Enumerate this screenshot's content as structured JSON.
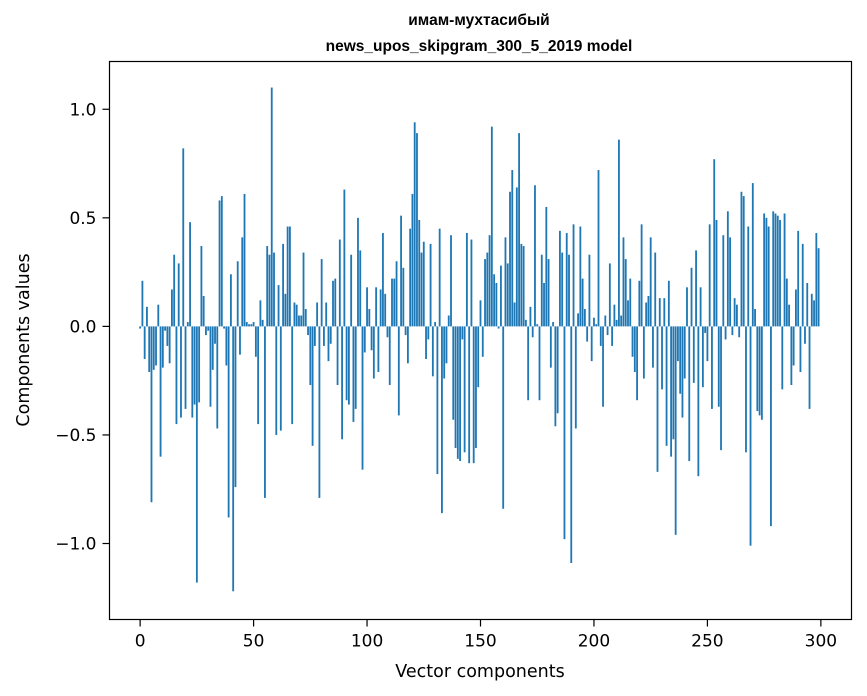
{
  "chart_data": {
    "type": "bar",
    "title": "имам-мухтасибый",
    "subtitle": "news_upos_skipgram_300_5_2019 model",
    "xlabel": "Vector components",
    "ylabel": "Components values",
    "xlim": [
      -13.5,
      313.5
    ],
    "ylim": [
      -1.35,
      1.22
    ],
    "xticks": [
      0,
      50,
      100,
      150,
      200,
      250,
      300
    ],
    "yticks": [
      -1.0,
      -0.5,
      0.0,
      0.5,
      1.0
    ],
    "ytick_labels": [
      "−1.0",
      "−0.5",
      "0.0",
      "0.5",
      "1.0"
    ],
    "grid": false,
    "bar_color": "#1f77b4",
    "x": [
      0,
      1,
      2,
      3,
      4,
      5,
      6,
      7,
      8,
      9,
      10,
      11,
      12,
      13,
      14,
      15,
      16,
      17,
      18,
      19,
      20,
      21,
      22,
      23,
      24,
      25,
      26,
      27,
      28,
      29,
      30,
      31,
      32,
      33,
      34,
      35,
      36,
      37,
      38,
      39,
      40,
      41,
      42,
      43,
      44,
      45,
      46,
      47,
      48,
      49,
      50,
      51,
      52,
      53,
      54,
      55,
      56,
      57,
      58,
      59,
      60,
      61,
      62,
      63,
      64,
      65,
      66,
      67,
      68,
      69,
      70,
      71,
      72,
      73,
      74,
      75,
      76,
      77,
      78,
      79,
      80,
      81,
      82,
      83,
      84,
      85,
      86,
      87,
      88,
      89,
      90,
      91,
      92,
      93,
      94,
      95,
      96,
      97,
      98,
      99,
      100,
      101,
      102,
      103,
      104,
      105,
      106,
      107,
      108,
      109,
      110,
      111,
      112,
      113,
      114,
      115,
      116,
      117,
      118,
      119,
      120,
      121,
      122,
      123,
      124,
      125,
      126,
      127,
      128,
      129,
      130,
      131,
      132,
      133,
      134,
      135,
      136,
      137,
      138,
      139,
      140,
      141,
      142,
      143,
      144,
      145,
      146,
      147,
      148,
      149,
      150,
      151,
      152,
      153,
      154,
      155,
      156,
      157,
      158,
      159,
      160,
      161,
      162,
      163,
      164,
      165,
      166,
      167,
      168,
      169,
      170,
      171,
      172,
      173,
      174,
      175,
      176,
      177,
      178,
      179,
      180,
      181,
      182,
      183,
      184,
      185,
      186,
      187,
      188,
      189,
      190,
      191,
      192,
      193,
      194,
      195,
      196,
      197,
      198,
      199,
      200,
      201,
      202,
      203,
      204,
      205,
      206,
      207,
      208,
      209,
      210,
      211,
      212,
      213,
      214,
      215,
      216,
      217,
      218,
      219,
      220,
      221,
      222,
      223,
      224,
      225,
      226,
      227,
      228,
      229,
      230,
      231,
      232,
      233,
      234,
      235,
      236,
      237,
      238,
      239,
      240,
      241,
      242,
      243,
      244,
      245,
      246,
      247,
      248,
      249,
      250,
      251,
      252,
      253,
      254,
      255,
      256,
      257,
      258,
      259,
      260,
      261,
      262,
      263,
      264,
      265,
      266,
      267,
      268,
      269,
      270,
      271,
      272,
      273,
      274,
      275,
      276,
      277,
      278,
      279,
      280,
      281,
      282,
      283,
      284,
      285,
      286,
      287,
      288,
      289,
      290,
      291,
      292,
      293,
      294,
      295,
      296,
      297,
      298,
      299
    ],
    "values": [
      -0.01,
      0.21,
      -0.15,
      0.09,
      -0.21,
      -0.81,
      -0.2,
      -0.18,
      0.1,
      -0.6,
      -0.19,
      -0.02,
      -0.09,
      -0.17,
      0.17,
      0.33,
      -0.45,
      0.29,
      -0.42,
      0.82,
      -0.38,
      0.02,
      0.48,
      -0.42,
      -0.36,
      -1.18,
      -0.35,
      0.37,
      0.14,
      -0.04,
      -0.02,
      -0.37,
      -0.2,
      -0.08,
      -0.47,
      0.58,
      0.6,
      -0.01,
      -0.18,
      -0.88,
      0.24,
      -1.22,
      -0.74,
      0.3,
      -0.13,
      0.41,
      0.61,
      0.02,
      0.01,
      0.01,
      0.02,
      -0.14,
      -0.45,
      0.12,
      0.03,
      -0.79,
      0.37,
      0.33,
      1.1,
      0.34,
      -0.5,
      0.19,
      -0.48,
      0.38,
      0.15,
      0.46,
      0.46,
      -0.45,
      0.11,
      0.1,
      0.05,
      0.05,
      0.34,
      0.08,
      -0.04,
      -0.27,
      -0.55,
      -0.09,
      0.11,
      -0.79,
      0.31,
      -0.09,
      0.11,
      -0.16,
      -0.08,
      0.21,
      0.22,
      -0.27,
      0.4,
      -0.52,
      0.63,
      -0.34,
      -0.36,
      0.33,
      -0.44,
      -0.38,
      0.5,
      0.35,
      -0.66,
      -0.12,
      0.18,
      0.08,
      -0.11,
      -0.24,
      0.18,
      -0.21,
      0.17,
      0.43,
      0.15,
      -0.05,
      -0.27,
      0.22,
      0.22,
      0.3,
      -0.41,
      0.51,
      0.27,
      -0.04,
      -0.17,
      0.45,
      0.61,
      0.94,
      0.89,
      0.49,
      0.34,
      0.39,
      -0.15,
      -0.06,
      0.38,
      -0.23,
      0.02,
      -0.68,
      0.45,
      -0.86,
      -0.24,
      -0.17,
      0.05,
      0.42,
      -0.43,
      -0.56,
      -0.61,
      -0.62,
      -0.06,
      -0.58,
      0.43,
      -0.63,
      0.4,
      -0.63,
      -0.56,
      -0.28,
      0.12,
      -0.14,
      0.31,
      0.34,
      0.42,
      0.92,
      0.24,
      0.2,
      -0.01,
      0.28,
      -0.84,
      0.41,
      0.29,
      0.62,
      0.72,
      0.11,
      0.64,
      0.89,
      0.38,
      0.37,
      0.03,
      -0.34,
      0.09,
      -0.05,
      0.65,
      0.01,
      -0.34,
      0.33,
      0.2,
      0.55,
      0.31,
      -0.19,
      0.02,
      -0.46,
      -0.4,
      0.44,
      0.34,
      -0.98,
      0.43,
      0.33,
      -1.09,
      0.47,
      -0.47,
      0.06,
      0.46,
      0.22,
      0.08,
      -0.07,
      0.33,
      -0.16,
      0.04,
      0.01,
      0.72,
      -0.09,
      -0.37,
      0.05,
      -0.04,
      0.29,
      -0.09,
      0.1,
      0.03,
      0.86,
      0.05,
      0.41,
      0.31,
      0.12,
      0.22,
      -0.14,
      -0.21,
      -0.34,
      0.21,
      0.47,
      -0.24,
      0.11,
      0.14,
      0.41,
      -0.19,
      0.34,
      -0.67,
      0.13,
      -0.29,
      0.13,
      -0.55,
      0.21,
      -0.6,
      -0.52,
      -0.96,
      -0.16,
      -0.31,
      -0.42,
      -0.24,
      0.18,
      -0.62,
      0.27,
      -0.26,
      0.35,
      -0.69,
      0.18,
      -0.28,
      -0.03,
      -0.16,
      0.47,
      -0.38,
      0.77,
      0.49,
      -0.37,
      -0.57,
      0.42,
      -0.06,
      0.53,
      0.41,
      -0.04,
      0.13,
      0.1,
      -0.05,
      0.62,
      0.6,
      -0.58,
      0.46,
      -1.01,
      0.66,
      0.08,
      -0.39,
      -0.41,
      -0.43,
      0.52,
      0.5,
      0.46,
      -0.92,
      0.53,
      0.52,
      0.51,
      0.49,
      -0.29,
      0.52,
      0.22,
      0.1,
      -0.27,
      -0.18,
      0.17,
      0.44,
      -0.21,
      0.38,
      -0.08,
      0.2,
      -0.38,
      0.15,
      0.12,
      0.43,
      0.36
    ]
  }
}
